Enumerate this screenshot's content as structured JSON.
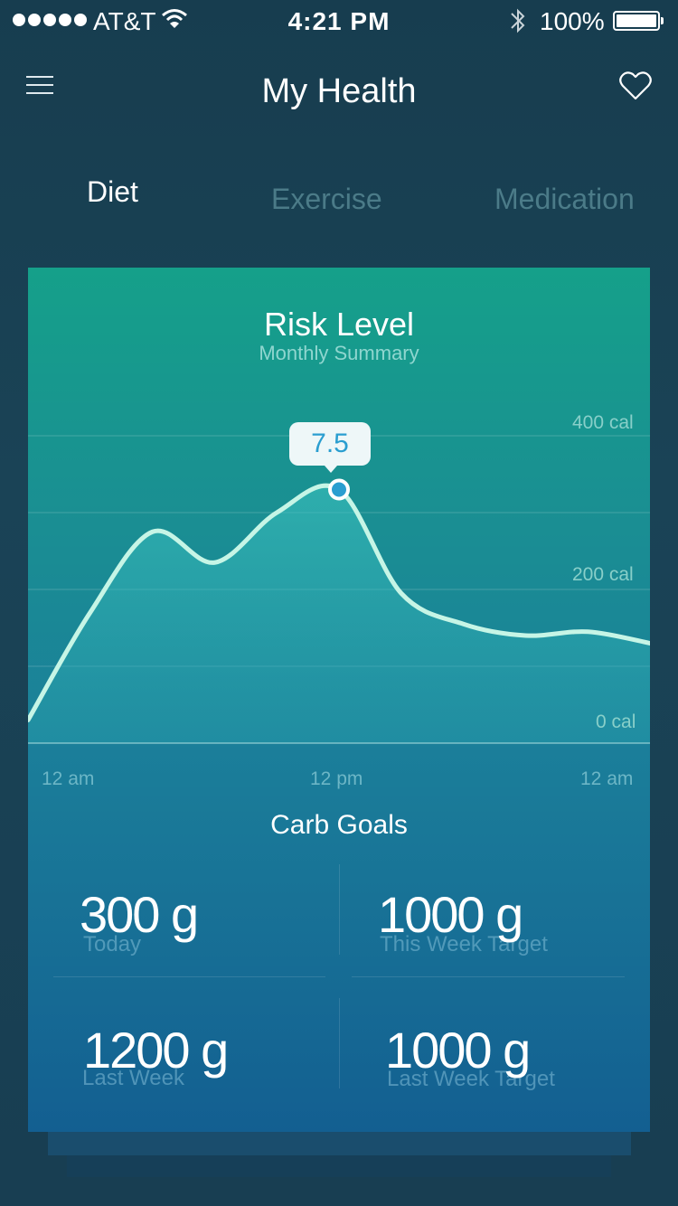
{
  "status_bar": {
    "carrier": "AT&T",
    "time": "4:21 PM",
    "battery": "100%"
  },
  "header": {
    "title": "My Health"
  },
  "tabs": [
    {
      "label": "Diet",
      "active": true
    },
    {
      "label": "Exercise",
      "active": false
    },
    {
      "label": "Medication",
      "active": false
    }
  ],
  "card": {
    "title": "Risk Level",
    "subtitle": "Monthly Summary",
    "tooltip_value": "7.5"
  },
  "chart_data": {
    "type": "area",
    "title": "Risk Level",
    "subtitle": "Monthly Summary",
    "y_tick_labels": [
      "400 cal",
      "200 cal",
      "0 cal"
    ],
    "x_tick_labels": [
      "12 am",
      "12 pm",
      "12 am"
    ],
    "ylim": [
      0,
      400
    ],
    "x": [
      0,
      0.1,
      0.2,
      0.3,
      0.4,
      0.5,
      0.6,
      0.7,
      0.8,
      0.9,
      1.0
    ],
    "values": [
      30,
      170,
      275,
      235,
      300,
      330,
      195,
      155,
      140,
      145,
      130
    ],
    "highlight": {
      "x": 0.5,
      "value": 330,
      "label": "7.5"
    }
  },
  "carb_goals": {
    "title": "Carb Goals",
    "items": [
      {
        "value": "300 g",
        "label": "Today"
      },
      {
        "value": "1000 g",
        "label": "This Week Target"
      },
      {
        "value": "1200 g",
        "label": "Last Week"
      },
      {
        "value": "1000 g",
        "label": "Last Week Target"
      }
    ]
  },
  "colors": {
    "accent_line": "#c6f5e6",
    "highlight_dot": "#2a9ed0"
  }
}
